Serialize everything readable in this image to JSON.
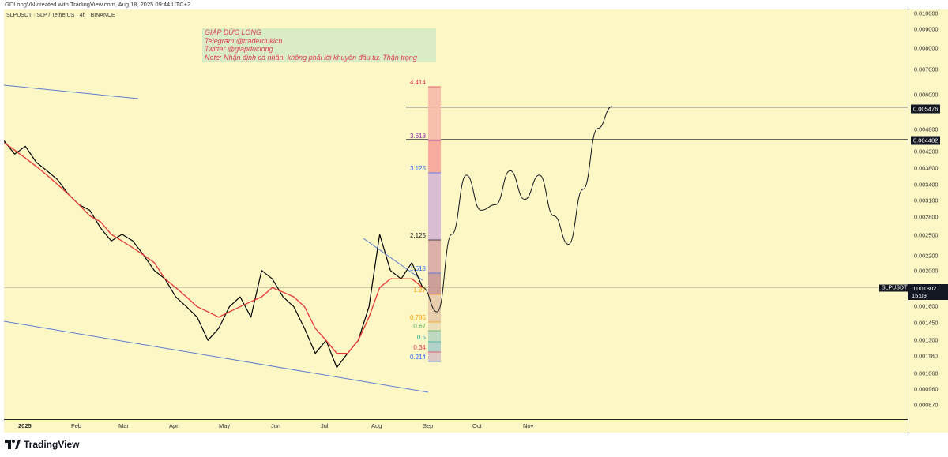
{
  "header": {
    "credit": "GDLongVN created with TradingView.com, Aug 18, 2025 09:44 UTC+2"
  },
  "symbol_line": "SLPUSDT · SLP / TetherUS · 4h · BINANCE",
  "note": {
    "lines": [
      "GIÁP ĐỨC LONG",
      "Telegram @traderdukich",
      "Twitter @giapduclong",
      "Note: Nhận định cá nhân, không phải lời khuyên đầu tư. Thận trọng"
    ],
    "bg_color": "#d8ecc3",
    "text_color": "#e0344d"
  },
  "footer": {
    "brand": "TradingView"
  },
  "price_axis": {
    "ticks": [
      "0.010000",
      "0.009000",
      "0.008000",
      "0.007000",
      "0.006000",
      "0.004800",
      "0.004200",
      "0.003800",
      "0.003400",
      "0.003100",
      "0.002800",
      "0.002500",
      "0.002200",
      "0.002000",
      "0.001600",
      "0.001450",
      "0.001300",
      "0.001180",
      "0.001060",
      "0.000960",
      "0.000870"
    ],
    "labels": [
      {
        "text": "0.005476",
        "kind": "level"
      },
      {
        "text": "0.004482",
        "kind": "level"
      }
    ],
    "current": {
      "symbol": "SLPUSDT",
      "price": "0.001802",
      "countdown": "15:09"
    }
  },
  "time_axis": {
    "labels": [
      "2025",
      "Feb",
      "Mar",
      "Apr",
      "May",
      "Jun",
      "Jul",
      "Aug",
      "Sep",
      "Oct",
      "Nov"
    ]
  },
  "fib_levels": [
    {
      "label": "4.414",
      "color": "#e0344d"
    },
    {
      "label": "3.618",
      "color": "#9c27b0"
    },
    {
      "label": "3.125",
      "color": "#2962ff"
    },
    {
      "label": "2.125",
      "color": "#131722"
    },
    {
      "label": "1.618",
      "color": "#2962ff"
    },
    {
      "label": "1.27",
      "color": "#ff9800"
    },
    {
      "label": "0.786",
      "color": "#ff9800"
    },
    {
      "label": "0.67",
      "color": "#4caf50"
    },
    {
      "label": "0.5",
      "color": "#26a69a"
    },
    {
      "label": "0.34",
      "color": "#e0344d"
    },
    {
      "label": "0.214",
      "color": "#2962ff"
    }
  ],
  "colors": {
    "background": "#fdf7c6",
    "candles": "#000000",
    "moving_average": "#e53935",
    "channel": "#5b7fd0",
    "projection": "#131722"
  },
  "chart_data": {
    "type": "line",
    "series": [
      {
        "values": [
          0.00445,
          0.0041,
          0.0043,
          0.0039,
          0.0037,
          0.0035,
          0.0032,
          0.003,
          0.0029,
          0.0026,
          0.0024,
          0.0025,
          0.0024,
          0.0022,
          0.002,
          0.0019,
          0.0017,
          0.0016,
          0.0015,
          0.0013,
          0.0014,
          0.0016,
          0.0017,
          0.0015,
          0.002,
          0.0019,
          0.0017,
          0.0016,
          0.0014,
          0.0012,
          0.0013,
          0.0011,
          0.0012,
          0.0013,
          0.0016,
          0.0025,
          0.002,
          0.0019,
          0.0021,
          0.0018
        ]
      },
      {
        "values": [
          0.0044,
          0.0042,
          0.004,
          0.0038,
          0.0036,
          0.0034,
          0.0032,
          0.003,
          0.0028,
          0.0027,
          0.0025,
          0.0024,
          0.0023,
          0.0022,
          0.0021,
          0.0019,
          0.0018,
          0.0017,
          0.0016,
          0.00155,
          0.0015,
          0.00155,
          0.0016,
          0.00165,
          0.0017,
          0.0018,
          0.00175,
          0.0017,
          0.0016,
          0.0014,
          0.0013,
          0.0012,
          0.0012,
          0.0013,
          0.0015,
          0.0018,
          0.0019,
          0.0019,
          0.0019,
          0.0018
        ]
      }
    ],
    "projection": {
      "values": [
        0.0018,
        0.00155,
        0.0025,
        0.0036,
        0.0029,
        0.003,
        0.0037,
        0.0031,
        0.0036,
        0.0028,
        0.00235,
        0.0033,
        0.0048,
        0.0055
      ]
    },
    "levels": [
      0.005476,
      0.004482,
      0.001802
    ],
    "y_scale": "log",
    "ylim": [
      0.0008,
      0.01
    ],
    "x_range": [
      "2025",
      "Nov"
    ],
    "grid": false,
    "legend": "none"
  }
}
